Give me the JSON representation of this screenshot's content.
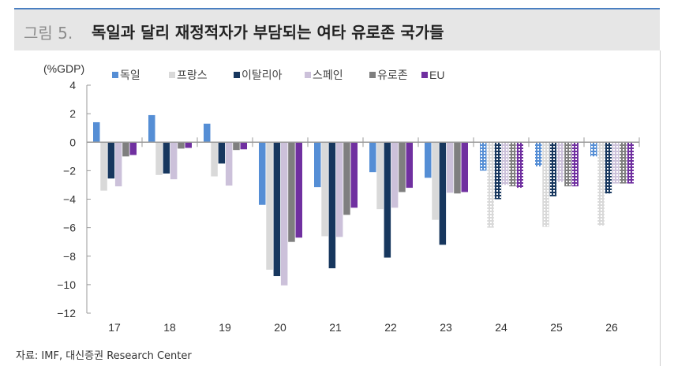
{
  "header": {
    "figure_number": "그림 5.",
    "title": "독일과 달리 재정적자가 부담되는 여타 유로존 국가들"
  },
  "footer": {
    "source": "자료: IMF, 대신증권 Research Center"
  },
  "chart_data": {
    "type": "bar",
    "title": "독일과 달리 재정적자가 부담되는 여타 유로존 국가들",
    "ylabel": "(%GDP)",
    "xlabel": "",
    "ylim": [
      -12,
      4
    ],
    "yticks": [
      4,
      2,
      0,
      -2,
      -4,
      -6,
      -8,
      -10,
      -12
    ],
    "ytick_labels": [
      "4",
      "2",
      "0",
      "−2",
      "−4",
      "−6",
      "−8",
      "−10",
      "−12"
    ],
    "categories": [
      "17",
      "18",
      "19",
      "20",
      "21",
      "22",
      "23",
      "24",
      "25",
      "26"
    ],
    "forecast_categories": [
      "24",
      "25",
      "26"
    ],
    "forecast_style": "patterned",
    "legend_position": "top",
    "grid": false,
    "series": [
      {
        "name": "독일",
        "color": "#558ed5",
        "values": [
          1.4,
          1.9,
          1.3,
          -4.4,
          -3.15,
          -2.1,
          -2.5,
          -2.0,
          -1.7,
          -1.0
        ]
      },
      {
        "name": "프랑스",
        "color": "#d9d9d9",
        "values": [
          -3.4,
          -2.3,
          -2.4,
          -8.95,
          -6.6,
          -4.7,
          -5.45,
          -6.0,
          -5.95,
          -5.85
        ]
      },
      {
        "name": "이탈리아",
        "color": "#17375e",
        "values": [
          -2.55,
          -2.2,
          -1.5,
          -9.4,
          -8.85,
          -8.1,
          -7.2,
          -4.0,
          -3.8,
          -3.6
        ]
      },
      {
        "name": "스페인",
        "color": "#ccc1da",
        "values": [
          -3.1,
          -2.6,
          -3.05,
          -10.05,
          -6.65,
          -4.6,
          -3.55,
          -3.0,
          -2.8,
          -2.9
        ]
      },
      {
        "name": "유로존",
        "color": "#7f7f7f",
        "values": [
          -1.0,
          -0.45,
          -0.55,
          -7.0,
          -5.1,
          -3.5,
          -3.6,
          -3.1,
          -3.1,
          -2.9
        ]
      },
      {
        "name": "EU",
        "color": "#7030a0",
        "values": [
          -0.9,
          -0.4,
          -0.5,
          -6.7,
          -4.6,
          -3.2,
          -3.5,
          -3.2,
          -3.1,
          -2.9
        ]
      }
    ]
  }
}
